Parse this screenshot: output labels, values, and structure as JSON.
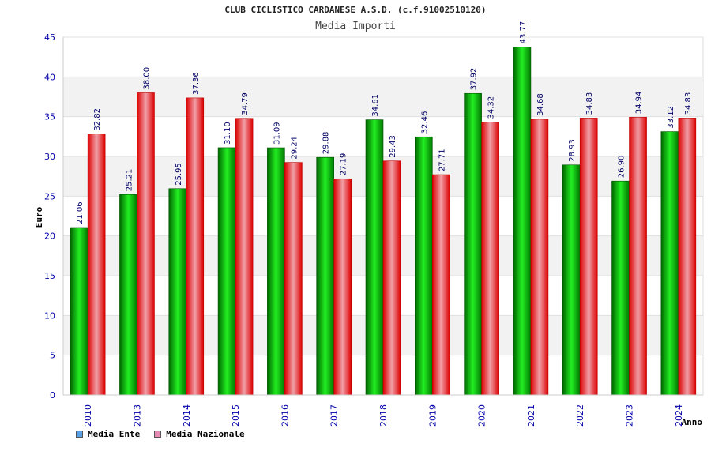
{
  "chart_data": {
    "type": "bar",
    "title": "CLUB CICLISTICO CARDANESE A.S.D. (c.f.91002510120)",
    "subtitle": "Media Importi",
    "xlabel": "Anno",
    "ylabel": "Euro",
    "ylim": [
      0,
      45
    ],
    "yticks": [
      0,
      5,
      10,
      15,
      20,
      25,
      30,
      35,
      40,
      45
    ],
    "categories": [
      "2010",
      "2013",
      "2014",
      "2015",
      "2016",
      "2017",
      "2018",
      "2019",
      "2020",
      "2021",
      "2022",
      "2023",
      "2024"
    ],
    "series": [
      {
        "name": "Media Ente",
        "values": [
          21.06,
          25.21,
          25.95,
          31.1,
          31.09,
          29.88,
          34.61,
          32.46,
          37.92,
          43.77,
          28.93,
          26.9,
          33.12
        ],
        "labels": [
          "21.06",
          "25.21",
          "25.95",
          "31.10",
          "31.09",
          "29.88",
          "34.61",
          "32.46",
          "37.92",
          "43.77",
          "28.93",
          "26.90",
          "33.12"
        ]
      },
      {
        "name": "Media Nazionale",
        "values": [
          32.82,
          38.0,
          37.36,
          34.79,
          29.24,
          27.19,
          29.43,
          27.71,
          34.32,
          34.68,
          34.83,
          34.94,
          34.83
        ],
        "labels": [
          "32.82",
          "38.00",
          "37.36",
          "34.79",
          "29.24",
          "27.19",
          "29.43",
          "27.71",
          "34.32",
          "34.68",
          "34.83",
          "34.94",
          "34.83"
        ]
      }
    ],
    "legend": {
      "position": "bottom-left",
      "items": [
        {
          "label": "Media Ente",
          "color": "#5aa0e6"
        },
        {
          "label": "Media Nazionale",
          "color": "#e68cb4"
        }
      ]
    },
    "colors": {
      "ente_dark": "#006600",
      "ente_light": "#22ee22",
      "naz_dark": "#dd0000",
      "naz_light": "#f0a0a8",
      "band": "#f2f2f2",
      "axis_text": "#0000aa",
      "value_text": "#000066"
    }
  }
}
